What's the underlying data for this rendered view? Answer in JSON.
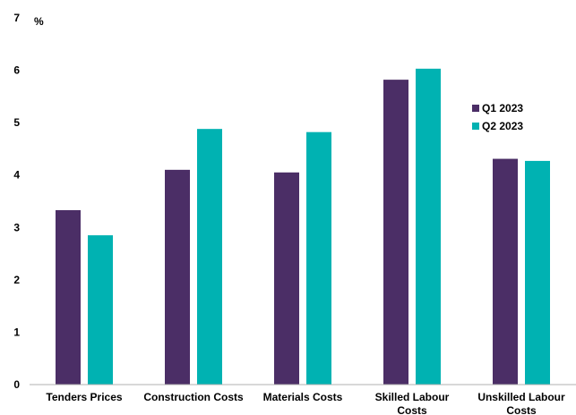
{
  "chart_data": {
    "type": "bar",
    "ylabel": "%",
    "ylim": [
      0,
      7
    ],
    "yticks": [
      0,
      1,
      2,
      3,
      4,
      5,
      6,
      7
    ],
    "categories": [
      [
        "Tenders Prices"
      ],
      [
        "Construction Costs"
      ],
      [
        "Materials Costs"
      ],
      [
        "Skilled Labour",
        "Costs"
      ],
      [
        "Unskilled Labour",
        "Costs"
      ]
    ],
    "series": [
      {
        "name": "Q1 2023",
        "color": "#4b2e66",
        "values": [
          3.33,
          4.1,
          4.05,
          5.82,
          4.31
        ]
      },
      {
        "name": "Q2 2023",
        "color": "#00b2b2",
        "values": [
          2.85,
          4.88,
          4.82,
          6.03,
          4.27
        ]
      }
    ],
    "grid": false,
    "legend_position": "right"
  }
}
